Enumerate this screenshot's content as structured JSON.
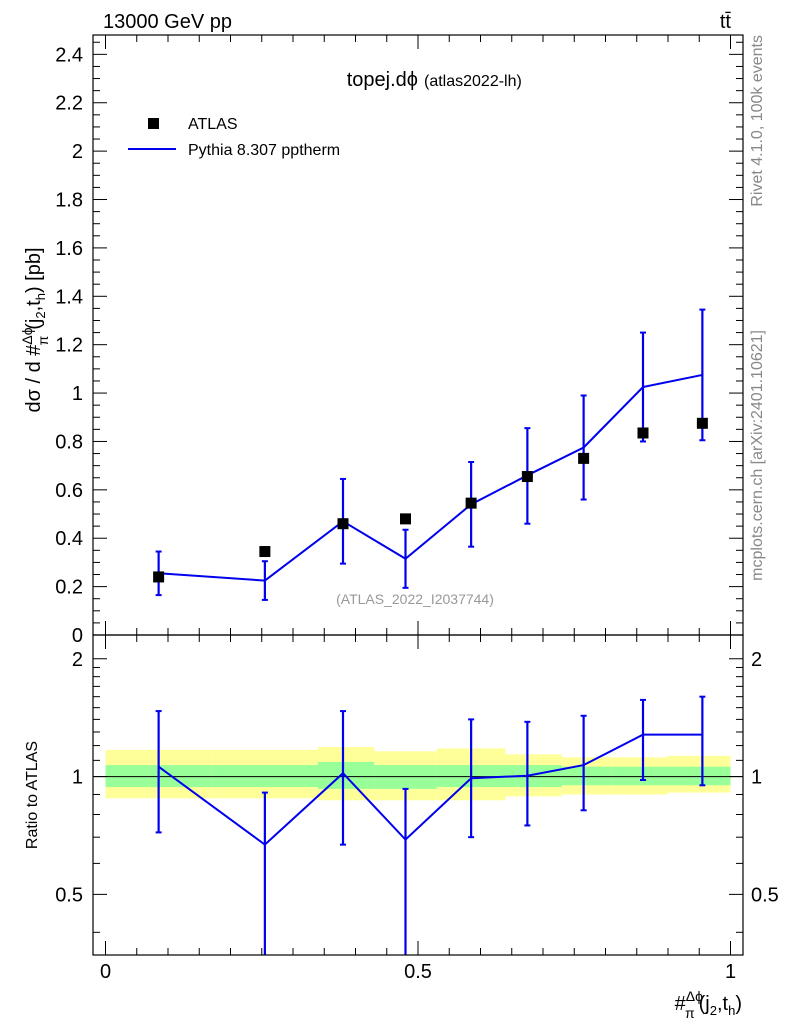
{
  "header": {
    "left": "13000 GeV pp",
    "right": "tt̄"
  },
  "side": {
    "version": "Rivet 4.1.0,  100k events",
    "source": "mcplots.cern.ch [arXiv:2401.10621]"
  },
  "main": {
    "title": "topej.dϕ",
    "subtitle": "(atlas2022-lh)",
    "analysis_label": "(ATLAS_2022_I2037744)"
  },
  "chart_data": [
    {
      "type": "scatter",
      "title": "topej.dϕ (atlas2022-lh)",
      "xlabel": "#Δϕ/π(j2,th)",
      "ylabel": "dσ / d #Δϕ/π(j2,th) [pb]",
      "xlim": [
        -0.02,
        1.02
      ],
      "ylim": [
        0,
        2.48
      ],
      "yticks": [
        0,
        0.2,
        0.4,
        0.6,
        0.8,
        1,
        1.2,
        1.4,
        1.6,
        1.8,
        2,
        2.2,
        2.4
      ],
      "ytick_labels": [
        "0",
        "0.2",
        "0.4",
        "0.6",
        "0.8",
        "1",
        "1.2",
        "1.4",
        "1.6",
        "1.8",
        "2",
        "2.2",
        "2.4"
      ],
      "legend": [
        {
          "label": "ATLAS",
          "marker": "square",
          "color": "#000000"
        },
        {
          "label": "Pythia 8.307 pptherm",
          "marker": "line",
          "color": "#0000ee"
        }
      ],
      "series": [
        {
          "name": "ATLAS",
          "x": [
            0.085,
            0.255,
            0.38,
            0.48,
            0.585,
            0.675,
            0.765,
            0.86,
            0.955
          ],
          "y": [
            0.24,
            0.345,
            0.46,
            0.48,
            0.545,
            0.655,
            0.73,
            0.835,
            0.875
          ]
        },
        {
          "name": "Pythia 8.307 pptherm",
          "x": [
            0.085,
            0.255,
            0.38,
            0.48,
            0.585,
            0.675,
            0.765,
            0.86,
            0.955
          ],
          "y": [
            0.255,
            0.225,
            0.47,
            0.315,
            0.54,
            0.66,
            0.775,
            1.025,
            1.075
          ],
          "err_low": [
            0.165,
            0.145,
            0.295,
            0.195,
            0.365,
            0.46,
            0.56,
            0.8,
            0.805
          ],
          "err_high": [
            0.345,
            0.305,
            0.645,
            0.435,
            0.715,
            0.855,
            0.99,
            1.25,
            1.345
          ]
        }
      ]
    },
    {
      "type": "line",
      "ylabel": "Ratio to ATLAS",
      "xlabel": "#Δϕ/π(j2,th)",
      "xlim": [
        -0.02,
        1.02
      ],
      "ylim": [
        0.35,
        2.3
      ],
      "yscale": "log",
      "xticks": [
        0,
        0.5,
        1
      ],
      "xtick_labels": [
        "0",
        "0.5",
        "1"
      ],
      "yticks": [
        0.5,
        1,
        2
      ],
      "ytick_labels": [
        "0.5",
        "1",
        "2"
      ],
      "bands": {
        "edges": [
          0.0,
          0.085,
          0.17,
          0.34,
          0.43,
          0.53,
          0.64,
          0.73,
          0.81,
          0.9,
          1.0
        ],
        "yellow_low": [
          0.88,
          0.88,
          0.88,
          0.87,
          0.87,
          0.87,
          0.89,
          0.9,
          0.9,
          0.91
        ],
        "yellow_high": [
          1.17,
          1.17,
          1.17,
          1.19,
          1.16,
          1.18,
          1.14,
          1.12,
          1.12,
          1.13
        ],
        "green_low": [
          0.94,
          0.94,
          0.94,
          0.93,
          0.93,
          0.94,
          0.94,
          0.95,
          0.95,
          0.95
        ],
        "green_high": [
          1.07,
          1.07,
          1.07,
          1.09,
          1.07,
          1.07,
          1.07,
          1.06,
          1.06,
          1.06
        ]
      },
      "series": [
        {
          "name": "Pythia 8.307 pptherm / ATLAS",
          "x": [
            0.085,
            0.255,
            0.38,
            0.48,
            0.585,
            0.675,
            0.765,
            0.86,
            0.955
          ],
          "y": [
            1.06,
            0.67,
            1.02,
            0.69,
            0.99,
            1.005,
            1.07,
            1.28,
            1.28
          ],
          "err_low": [
            0.72,
            0.3,
            0.67,
            0.3,
            0.7,
            0.75,
            0.82,
            0.98,
            0.95
          ],
          "err_high": [
            1.47,
            0.91,
            1.47,
            0.93,
            1.4,
            1.38,
            1.43,
            1.57,
            1.6
          ]
        }
      ]
    }
  ]
}
